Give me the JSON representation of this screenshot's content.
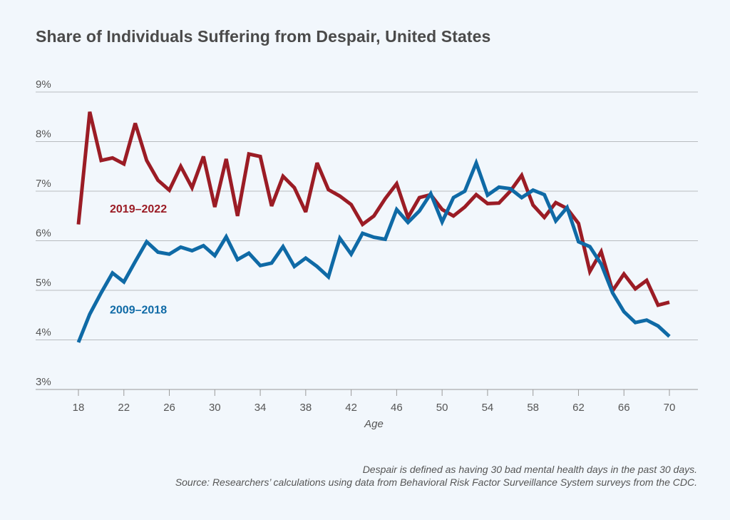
{
  "chart_data": {
    "type": "line",
    "title": "Share of Individuals Suffering from Despair, United States",
    "xlabel": "Age",
    "ylabel": "",
    "xlim": [
      18,
      70
    ],
    "ylim": [
      3,
      9
    ],
    "x_ticks": [
      18,
      22,
      26,
      30,
      34,
      38,
      42,
      46,
      50,
      54,
      58,
      62,
      66,
      70
    ],
    "y_ticks": [
      3,
      4,
      5,
      6,
      7,
      8,
      9
    ],
    "y_tick_labels": [
      "3%",
      "4%",
      "5%",
      "6%",
      "7%",
      "8%",
      "9%"
    ],
    "grid": true,
    "x": [
      18,
      19,
      20,
      21,
      22,
      23,
      24,
      25,
      26,
      27,
      28,
      29,
      30,
      31,
      32,
      33,
      34,
      35,
      36,
      37,
      38,
      39,
      40,
      41,
      42,
      43,
      44,
      45,
      46,
      47,
      48,
      49,
      50,
      51,
      52,
      53,
      54,
      55,
      56,
      57,
      58,
      59,
      60,
      61,
      62,
      63,
      64,
      65,
      66,
      67,
      68,
      69,
      70
    ],
    "series": [
      {
        "name": "2019–2022",
        "color": "#9b1c25",
        "values": [
          6.33,
          8.6,
          7.62,
          7.67,
          7.55,
          8.37,
          7.62,
          7.22,
          7.02,
          7.5,
          7.07,
          7.7,
          6.68,
          7.65,
          6.5,
          7.75,
          7.7,
          6.7,
          7.3,
          7.07,
          6.58,
          7.57,
          7.03,
          6.9,
          6.73,
          6.33,
          6.5,
          6.85,
          7.15,
          6.47,
          6.87,
          6.93,
          6.63,
          6.5,
          6.68,
          6.93,
          6.75,
          6.76,
          7.0,
          7.32,
          6.72,
          6.47,
          6.77,
          6.65,
          6.35,
          5.38,
          5.78,
          4.99,
          5.33,
          5.03,
          5.2,
          4.7,
          4.76
        ]
      },
      {
        "name": "2009–2018",
        "color": "#0f6aa6",
        "values": [
          3.95,
          4.52,
          4.95,
          5.35,
          5.17,
          5.58,
          5.98,
          5.77,
          5.73,
          5.87,
          5.8,
          5.9,
          5.7,
          6.08,
          5.62,
          5.75,
          5.5,
          5.55,
          5.88,
          5.48,
          5.65,
          5.48,
          5.27,
          6.05,
          5.73,
          6.15,
          6.07,
          6.03,
          6.63,
          6.37,
          6.6,
          6.95,
          6.38,
          6.87,
          7.0,
          7.57,
          6.92,
          7.08,
          7.05,
          6.87,
          7.02,
          6.93,
          6.4,
          6.67,
          5.98,
          5.88,
          5.53,
          4.95,
          4.57,
          4.35,
          4.4,
          4.28,
          4.07
        ]
      }
    ],
    "annotations": [
      "2019–2022",
      "2009–2018"
    ]
  },
  "notes": {
    "definition": "Despair is defined as having 30 bad mental health days in the past 30 days.",
    "source": "Source: Researchers’ calculations using data from Behavioral Risk Factor Surveillance System surveys from the CDC."
  }
}
